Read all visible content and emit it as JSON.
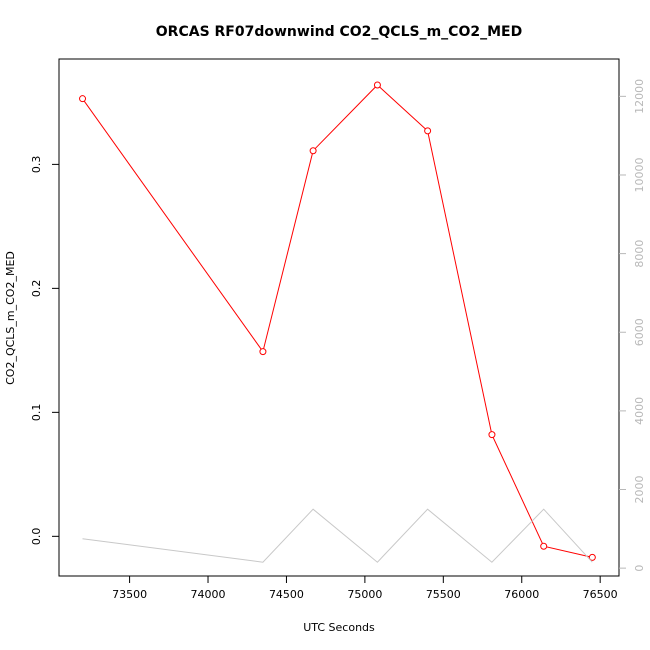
{
  "chart_data": {
    "type": "line",
    "title": "ORCAS RF07downwind CO2_QCLS_m_CO2_MED",
    "xlabel": "UTC Seconds",
    "ylabel": "CO2_QCLS_m_CO2_MED",
    "y2label": "",
    "xlim": [
      73050,
      76620
    ],
    "ylim": [
      -0.032,
      0.385
    ],
    "y2lim": [
      -200,
      12950
    ],
    "x_ticks": [
      73500,
      74000,
      74500,
      75000,
      75500,
      76000,
      76500
    ],
    "y_ticks": [
      0.0,
      0.1,
      0.2,
      0.3
    ],
    "y_tick_labels": [
      "0.0",
      "0.1",
      "0.2",
      "0.3"
    ],
    "y2_ticks": [
      0,
      2000,
      4000,
      6000,
      8000,
      10000,
      12000
    ],
    "grid": false,
    "series": [
      {
        "axis": "left",
        "color": "#ff0000",
        "marker": "open-circle",
        "x": [
          73200,
          74350,
          74670,
          75080,
          75400,
          75810,
          76140,
          76450
        ],
        "y": [
          0.353,
          0.149,
          0.311,
          0.364,
          0.327,
          0.082,
          -0.008,
          -0.017
        ]
      },
      {
        "axis": "right",
        "color": "#c8c8c8",
        "marker": "none",
        "x": [
          73200,
          74350,
          74670,
          75080,
          75400,
          75810,
          76140,
          76450
        ],
        "y": [
          750,
          150,
          1500,
          150,
          1500,
          150,
          1500,
          150
        ]
      }
    ]
  }
}
